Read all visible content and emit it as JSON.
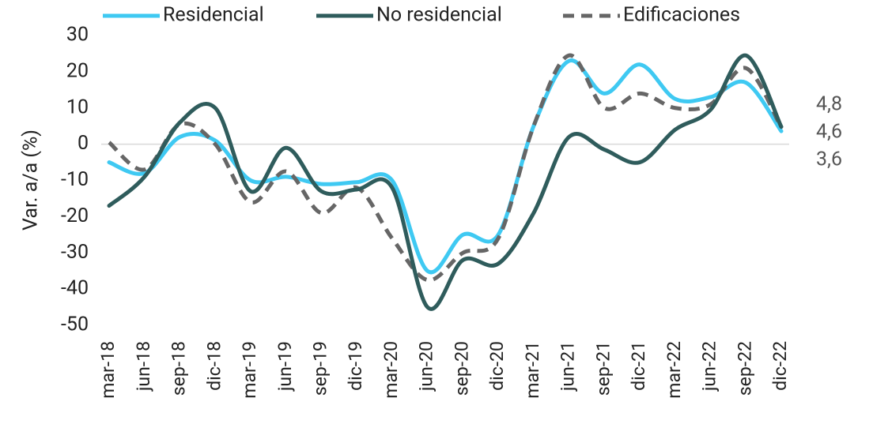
{
  "chart_data": {
    "type": "line",
    "y_label": "Var. a/a (%)",
    "categories": [
      "mar-18",
      "jun-18",
      "sep-18",
      "dic-18",
      "mar-19",
      "jun-19",
      "sep-19",
      "dic-19",
      "mar-20",
      "jun-20",
      "sep-20",
      "dic-20",
      "mar-21",
      "jun-21",
      "sep-21",
      "dic-21",
      "mar-22",
      "jun-22",
      "sep-22",
      "dic-22"
    ],
    "series": [
      {
        "name": "Residencial",
        "color": "#3fc9f2",
        "dash": false,
        "values": [
          -5,
          -8,
          2,
          1,
          -10,
          -9,
          -11,
          -10.5,
          -10,
          -35,
          -25,
          -25,
          5,
          23,
          14,
          22,
          12.5,
          13,
          17,
          3.6
        ],
        "value_labels": [
          null,
          null,
          null,
          null,
          null,
          null,
          null,
          null,
          null,
          null,
          null,
          null,
          null,
          null,
          null,
          null,
          null,
          null,
          null,
          "3,6"
        ]
      },
      {
        "name": "No residencial",
        "color": "#2f5c5c",
        "dash": false,
        "values": [
          -17,
          -9,
          6,
          10,
          -13,
          -1,
          -13,
          -12.5,
          -12,
          -45,
          -32,
          -33,
          -19,
          2,
          -1.5,
          -5,
          4,
          9.5,
          24.5,
          4.8
        ],
        "value_labels": [
          null,
          null,
          null,
          null,
          null,
          null,
          null,
          null,
          null,
          null,
          null,
          null,
          null,
          null,
          null,
          null,
          null,
          null,
          null,
          "4,8"
        ]
      },
      {
        "name": "Edificaciones",
        "color": "#666666",
        "dash": true,
        "values": [
          0.5,
          -7,
          5.5,
          0,
          -16,
          -7.5,
          -19,
          -12,
          -26,
          -37.5,
          -30,
          -26,
          5,
          24.5,
          10,
          14,
          10,
          11,
          21,
          4.6
        ],
        "value_labels": [
          null,
          null,
          null,
          null,
          null,
          null,
          null,
          null,
          null,
          null,
          null,
          null,
          null,
          null,
          null,
          null,
          null,
          null,
          null,
          "4,6"
        ]
      }
    ],
    "ylim": [
      -50,
      30
    ],
    "yticks": [
      30,
      20,
      10,
      0,
      -10,
      -20,
      -30,
      -40,
      -50
    ],
    "zero_line": true
  }
}
